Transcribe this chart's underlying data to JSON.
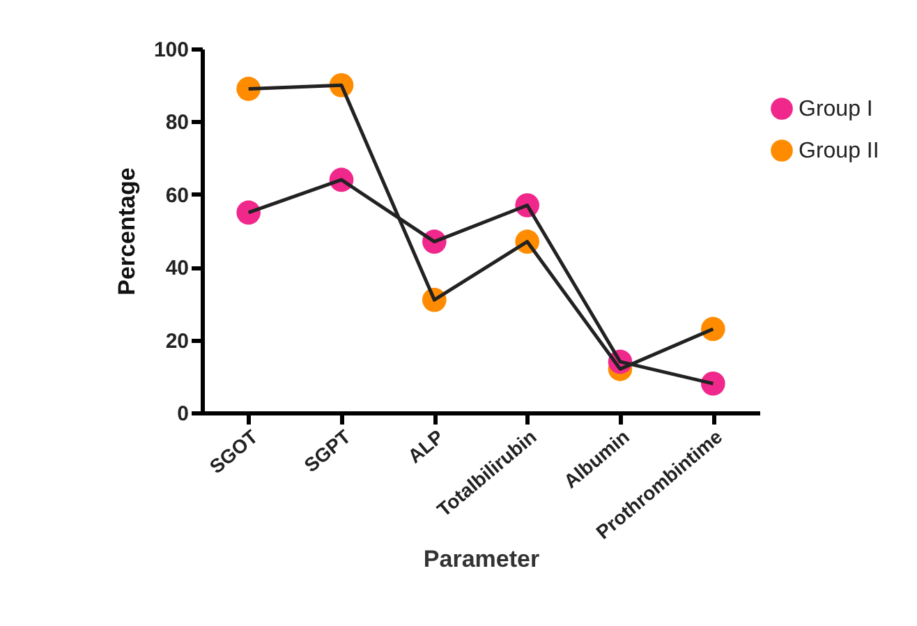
{
  "chart_data": {
    "type": "line",
    "xlabel": "Parameter",
    "ylabel": "Percentage",
    "categories": [
      "SGOT",
      "SGPT",
      "ALP",
      "Totalbilirubin",
      "Albumin",
      "Prothrombintime"
    ],
    "series": [
      {
        "name": "Group I",
        "color": "#f0288c",
        "values": [
          55,
          64,
          47,
          57,
          14,
          8
        ]
      },
      {
        "name": "Group II",
        "color": "#ff8c00",
        "values": [
          89,
          90,
          31,
          47,
          12,
          23
        ]
      }
    ],
    "ylim": [
      0,
      100
    ],
    "yticks": [
      0,
      20,
      40,
      60,
      80,
      100
    ],
    "grid": false,
    "legend": "top right",
    "marker": "circle",
    "line_style": "solid"
  }
}
